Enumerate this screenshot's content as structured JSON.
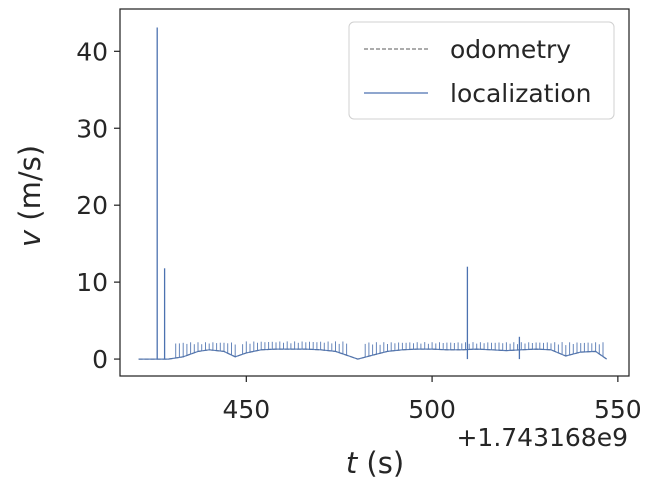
{
  "chart_data": {
    "type": "line",
    "title": "",
    "xlabel_var": "t",
    "xlabel_unit": " (s)",
    "ylabel_var": "v",
    "ylabel_unit": " (m/s)",
    "x_offset_label": "+1.743168e9",
    "xlim": [
      416,
      553
    ],
    "ylim": [
      -2.2,
      45.5
    ],
    "xticks": [
      450,
      500,
      550
    ],
    "yticks": [
      0,
      10,
      20,
      30,
      40
    ],
    "grid": false,
    "legend_position": "top-right",
    "series": [
      {
        "name": "odometry",
        "style": "dashed",
        "color": "#7a7a7a",
        "x": [
          421,
          425,
          429,
          433,
          437,
          440,
          444,
          447,
          450,
          454,
          458,
          462,
          466,
          470,
          474,
          477,
          480,
          484,
          488,
          492,
          496,
          500,
          504,
          508,
          512,
          516,
          520,
          524,
          528,
          532,
          536,
          540,
          544,
          547
        ],
        "y": [
          0,
          0,
          0,
          0.3,
          1.0,
          1.2,
          1.0,
          0.3,
          0.8,
          1.2,
          1.3,
          1.3,
          1.3,
          1.2,
          1.0,
          0.5,
          0,
          0.5,
          1.0,
          1.2,
          1.3,
          1.3,
          1.2,
          1.2,
          1.3,
          1.2,
          1.1,
          1.2,
          1.3,
          1.2,
          0.4,
          0.9,
          1.0,
          0
        ]
      },
      {
        "name": "localization",
        "style": "solid",
        "color": "#4c72b0",
        "base_x": [
          421,
          429,
          433,
          437,
          440,
          444,
          447,
          450,
          454,
          458,
          462,
          466,
          470,
          474,
          477,
          480,
          484,
          488,
          492,
          496,
          500,
          504,
          508,
          512,
          516,
          520,
          524,
          528,
          532,
          536,
          540,
          544,
          547
        ],
        "base_y": [
          0,
          0,
          0.3,
          1.0,
          1.2,
          1.0,
          0.3,
          0.8,
          1.2,
          1.3,
          1.3,
          1.3,
          1.2,
          1.0,
          0.5,
          0,
          0.5,
          1.0,
          1.2,
          1.3,
          1.3,
          1.2,
          1.2,
          1.3,
          1.2,
          1.1,
          1.2,
          1.3,
          1.2,
          0.4,
          0.9,
          1.0,
          0
        ],
        "spike_regions": [
          {
            "start": 431,
            "end": 447,
            "step": 1,
            "top": 2.2
          },
          {
            "start": 449,
            "end": 477,
            "step": 1,
            "top": 2.3
          },
          {
            "start": 482,
            "end": 546,
            "step": 1,
            "top": 2.2
          }
        ],
        "large_spikes": [
          {
            "x": 426,
            "y": 43.1
          },
          {
            "x": 428,
            "y": 11.8
          },
          {
            "x": 509.5,
            "y": 12.0
          },
          {
            "x": 523.5,
            "y": 2.9
          }
        ]
      }
    ]
  }
}
